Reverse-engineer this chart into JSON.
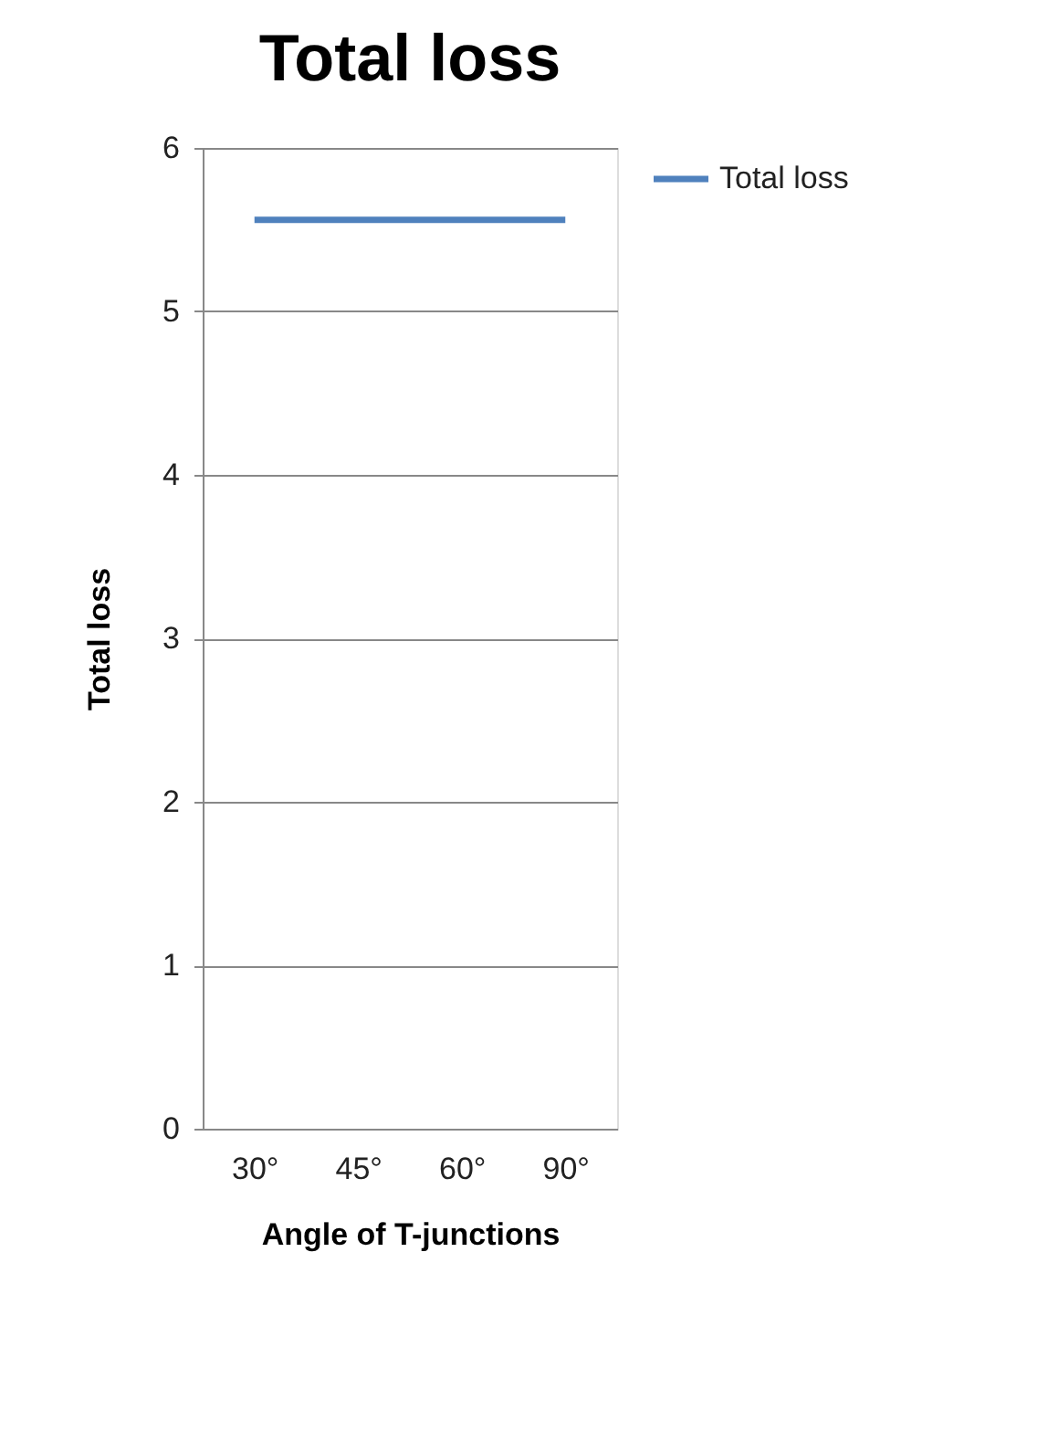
{
  "chart_data": {
    "type": "line",
    "title": "Total loss",
    "xlabel": "Angle of T-junctions",
    "ylabel": "Total loss",
    "categories": [
      "30°",
      "45°",
      "60°",
      "90°"
    ],
    "series": [
      {
        "name": "Total loss",
        "color": "#4f81bd",
        "values": [
          5.56,
          5.56,
          5.56,
          5.56
        ]
      }
    ],
    "ylim": [
      0,
      6
    ],
    "yticks": [
      0,
      1,
      2,
      3,
      4,
      5,
      6
    ],
    "grid": "y",
    "legend": "right",
    "marker": "none"
  }
}
